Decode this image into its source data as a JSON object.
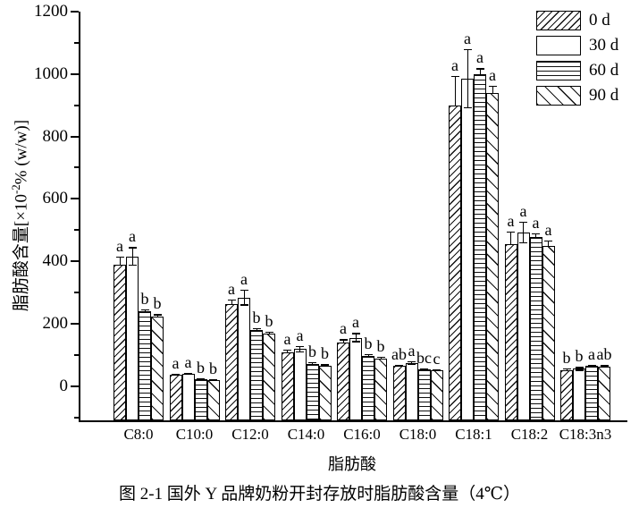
{
  "figure": {
    "caption": "图 2-1  国外 Y 品牌奶粉开封存放时脂肪酸含量（4℃）"
  },
  "chart_data": {
    "type": "bar",
    "title": "",
    "xlabel": "脂肪酸",
    "ylabel": "脂肪酸含量[×10-2% (w/w)]",
    "ylabel_prefix": "脂肪酸含量[×10",
    "ylabel_sup": "-2",
    "ylabel_suffix": "% (w/w)]",
    "ylim": [
      -110,
      1200
    ],
    "yticks_major": [
      0,
      200,
      400,
      600,
      800,
      1000,
      1200
    ],
    "yticks_minor": [
      -100,
      100,
      300,
      500,
      700,
      900,
      1100
    ],
    "grid": "off",
    "legend_position": "top-right",
    "categories": [
      "C8:0",
      "C10:0",
      "C12:0",
      "C14:0",
      "C16:0",
      "C18:0",
      "C18:1",
      "C18:2",
      "C18:3n3"
    ],
    "series": [
      {
        "name": "0 d",
        "pattern": "diagonal-up-hatch",
        "values": [
          390,
          35,
          262,
          108,
          140,
          64,
          900,
          455,
          50
        ],
        "errors": [
          25,
          3,
          15,
          8,
          10,
          5,
          95,
          40,
          6
        ],
        "letters": [
          "a",
          "a",
          "a",
          "a",
          "a",
          "ab",
          "a",
          "a",
          "b"
        ]
      },
      {
        "name": "30 d",
        "pattern": "plain-white",
        "values": [
          415,
          38,
          283,
          118,
          155,
          74,
          985,
          492,
          55
        ],
        "errors": [
          30,
          3,
          25,
          10,
          15,
          6,
          95,
          35,
          6
        ],
        "letters": [
          "a",
          "a",
          "a",
          "a",
          "a",
          "a",
          "a",
          "a",
          "b"
        ]
      },
      {
        "name": "60 d",
        "pattern": "horizontal-lines",
        "values": [
          240,
          22,
          180,
          72,
          97,
          52,
          1000,
          478,
          65
        ],
        "errors": [
          6,
          2,
          6,
          4,
          5,
          3,
          18,
          12,
          3
        ],
        "letters": [
          "b",
          "b",
          "b",
          "b",
          "b",
          "bc",
          "a",
          "a",
          "a"
        ]
      },
      {
        "name": "90 d",
        "pattern": "diagonal-down-hatch",
        "values": [
          222,
          20,
          168,
          66,
          88,
          50,
          940,
          448,
          63
        ],
        "errors": [
          8,
          2,
          6,
          4,
          5,
          3,
          22,
          18,
          4
        ],
        "letters": [
          "b",
          "b",
          "b",
          "b",
          "b",
          "c",
          "a",
          "a",
          "ab"
        ]
      }
    ]
  }
}
